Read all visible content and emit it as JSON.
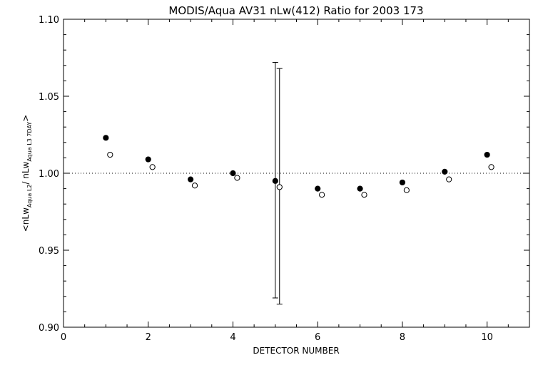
{
  "chart_data": {
    "type": "scatter",
    "title": "MODIS/Aqua AV31 nLw(412) Ratio for 2003 173",
    "xlabel": "DETECTOR NUMBER",
    "ylabel": {
      "prefix": "<nLw",
      "sub1": "Aqua L2",
      "middle": "/ nLw",
      "sub2": "Aqua L3 7DAY",
      "suffix": ">"
    },
    "xlim": [
      0,
      11
    ],
    "ylim": [
      0.9,
      1.1
    ],
    "xticks": [
      "0",
      "2",
      "4",
      "6",
      "8",
      "10"
    ],
    "xtick_values": [
      0,
      2,
      4,
      6,
      8,
      10
    ],
    "yticks": [
      "0.90",
      "0.95",
      "1.00",
      "1.05",
      "1.10"
    ],
    "ytick_values": [
      0.9,
      0.95,
      1.0,
      1.05,
      1.1
    ],
    "reference_line": 1.0,
    "series": [
      {
        "marker": "filled-circle",
        "x": [
          1,
          2,
          3,
          4,
          5,
          6,
          7,
          8,
          9,
          10
        ],
        "y": [
          1.023,
          1.009,
          0.996,
          1.0,
          0.995,
          0.99,
          0.99,
          0.994,
          1.001,
          1.012
        ]
      },
      {
        "marker": "open-circle",
        "x": [
          1.1,
          2.1,
          3.1,
          4.1,
          5.1,
          6.1,
          7.1,
          8.1,
          9.1,
          10.1
        ],
        "y": [
          1.012,
          1.004,
          0.992,
          0.997,
          0.991,
          0.986,
          0.986,
          0.989,
          0.996,
          1.004
        ]
      }
    ],
    "error_bars": [
      {
        "x": 5.0,
        "low": 0.919,
        "high": 1.072
      },
      {
        "x": 5.1,
        "low": 0.915,
        "high": 1.068
      }
    ],
    "grid": false
  }
}
